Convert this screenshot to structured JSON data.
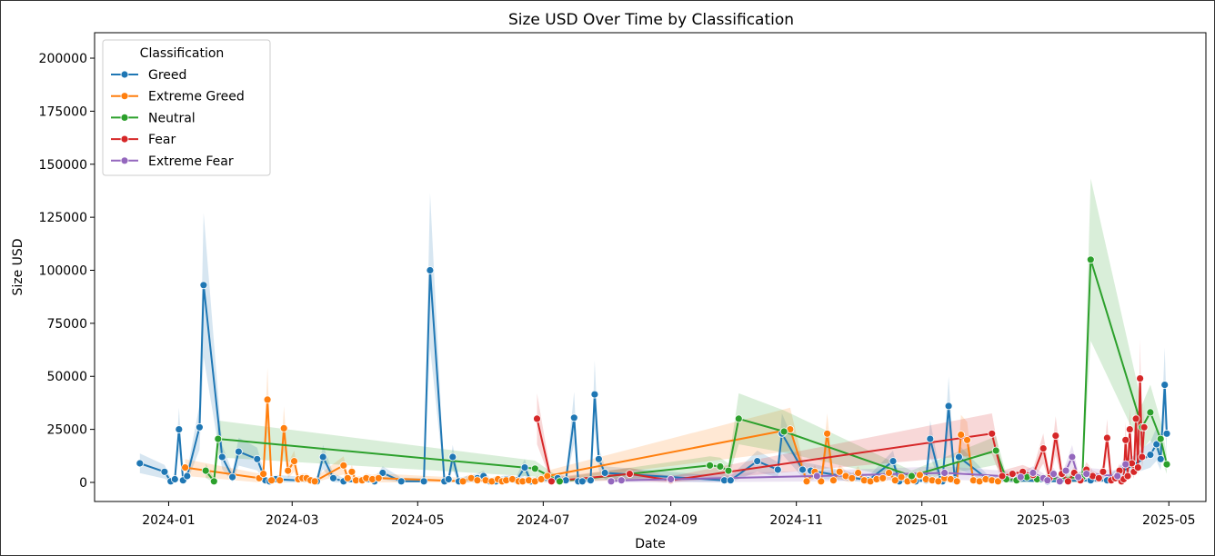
{
  "chart_data": {
    "type": "line",
    "title": "Size USD Over Time by Classification",
    "xlabel": "Date",
    "ylabel": "Size USD",
    "ylim": [
      -9000,
      212000
    ],
    "yticks": [
      0,
      25000,
      50000,
      75000,
      100000,
      125000,
      150000,
      175000,
      200000
    ],
    "y_tick_labels": [
      "0",
      "25000",
      "50000",
      "75000",
      "100000",
      "125000",
      "150000",
      "175000",
      "200000"
    ],
    "xlim": [
      "2023-11-26",
      "2025-05-19"
    ],
    "xticks": [
      "2024-01-01",
      "2024-03-01",
      "2024-05-01",
      "2024-07-01",
      "2024-09-01",
      "2024-11-01",
      "2025-01-01",
      "2025-03-01",
      "2025-05-01"
    ],
    "x_tick_labels": [
      "2024-01",
      "2024-03",
      "2024-05",
      "2024-07",
      "2024-09",
      "2024-11",
      "2025-01",
      "2025-03",
      "2025-05"
    ],
    "grid": false,
    "legend": {
      "title": "Classification",
      "placement": "top-left"
    },
    "series": [
      {
        "name": "Greed",
        "color": "#1f77b4",
        "x": [
          "2023-12-18",
          "2023-12-30",
          "2024-01-02",
          "2024-01-04",
          "2024-01-06",
          "2024-01-08",
          "2024-01-10",
          "2024-01-16",
          "2024-01-18",
          "2024-01-27",
          "2024-02-01",
          "2024-02-04",
          "2024-02-13",
          "2024-02-17",
          "2024-02-19",
          "2024-02-22",
          "2024-03-13",
          "2024-03-16",
          "2024-03-21",
          "2024-03-26",
          "2024-04-10",
          "2024-04-14",
          "2024-04-23",
          "2024-05-04",
          "2024-05-07",
          "2024-05-14",
          "2024-05-16",
          "2024-05-18",
          "2024-05-21",
          "2024-05-30",
          "2024-06-02",
          "2024-06-05",
          "2024-06-08",
          "2024-06-13",
          "2024-06-18",
          "2024-06-22",
          "2024-06-25",
          "2024-07-08",
          "2024-07-12",
          "2024-07-16",
          "2024-07-18",
          "2024-07-20",
          "2024-07-24",
          "2024-07-26",
          "2024-07-28",
          "2024-07-31",
          "2024-09-27",
          "2024-09-30",
          "2024-10-13",
          "2024-10-23",
          "2024-10-25",
          "2024-11-04",
          "2024-11-08",
          "2024-12-06",
          "2024-12-18",
          "2024-12-21",
          "2024-12-26",
          "2024-12-29",
          "2025-01-03",
          "2025-01-05",
          "2025-01-10",
          "2025-01-11",
          "2025-01-14",
          "2025-01-17",
          "2025-01-19",
          "2025-02-02",
          "2025-03-03",
          "2025-03-24",
          "2025-04-01",
          "2025-04-22",
          "2025-04-25",
          "2025-04-27",
          "2025-04-29",
          "2025-04-30"
        ],
        "values": [
          9000,
          5000,
          500,
          1500,
          25000,
          1000,
          3000,
          26000,
          93000,
          12000,
          2500,
          14500,
          11000,
          1000,
          500,
          1500,
          500,
          12000,
          2000,
          500,
          500,
          4500,
          500,
          500,
          100000,
          500,
          1500,
          12000,
          500,
          2000,
          3000,
          500,
          500,
          1500,
          1000,
          7000,
          500,
          2000,
          1000,
          30500,
          500,
          500,
          1000,
          41500,
          11000,
          4500,
          1000,
          1000,
          10000,
          6000,
          23000,
          6000,
          5500,
          1000,
          10000,
          500,
          1000,
          500,
          1000,
          20500,
          1500,
          500,
          36000,
          1000,
          12000,
          1500,
          500,
          1000,
          1000,
          13000,
          18000,
          11000,
          46000,
          23000
        ]
      },
      {
        "name": "Extreme Greed",
        "color": "#ff7f0e",
        "x": [
          "2024-01-09",
          "2024-02-14",
          "2024-02-16",
          "2024-02-18",
          "2024-02-20",
          "2024-02-24",
          "2024-02-26",
          "2024-02-28",
          "2024-03-02",
          "2024-03-04",
          "2024-03-06",
          "2024-03-08",
          "2024-03-10",
          "2024-03-12",
          "2024-03-26",
          "2024-03-28",
          "2024-03-30",
          "2024-04-01",
          "2024-04-04",
          "2024-04-06",
          "2024-04-09",
          "2024-04-12",
          "2024-05-23",
          "2024-05-27",
          "2024-05-30",
          "2024-06-03",
          "2024-06-06",
          "2024-06-09",
          "2024-06-11",
          "2024-06-13",
          "2024-06-16",
          "2024-06-19",
          "2024-06-21",
          "2024-06-24",
          "2024-06-27",
          "2024-06-30",
          "2024-07-03",
          "2024-10-29",
          "2024-11-06",
          "2024-11-10",
          "2024-11-13",
          "2024-11-16",
          "2024-11-19",
          "2024-11-22",
          "2024-11-25",
          "2024-11-28",
          "2024-12-01",
          "2024-12-04",
          "2024-12-07",
          "2024-12-10",
          "2024-12-13",
          "2024-12-16",
          "2024-12-19",
          "2024-12-22",
          "2024-12-25",
          "2024-12-28",
          "2024-12-31",
          "2025-01-03",
          "2025-01-06",
          "2025-01-09",
          "2025-01-12",
          "2025-01-15",
          "2025-01-18",
          "2025-01-20",
          "2025-01-23",
          "2025-01-26",
          "2025-01-29",
          "2025-02-01",
          "2025-02-04",
          "2025-02-07"
        ],
        "values": [
          7000,
          2000,
          4000,
          39000,
          1000,
          1000,
          25500,
          5500,
          10000,
          1500,
          2000,
          2000,
          1000,
          500,
          8000,
          2000,
          5000,
          1000,
          1000,
          2000,
          1500,
          2000,
          500,
          2000,
          1000,
          1000,
          500,
          1500,
          500,
          1000,
          1500,
          500,
          500,
          1000,
          500,
          1500,
          3000,
          25000,
          500,
          5000,
          500,
          23000,
          1000,
          5000,
          3000,
          2000,
          4500,
          1000,
          500,
          1500,
          2000,
          4500,
          1000,
          2500,
          500,
          1000,
          3500,
          1500,
          1000,
          500,
          2000,
          1500,
          500,
          22500,
          20000,
          1000,
          500,
          1500,
          1000,
          500
        ]
      },
      {
        "name": "Neutral",
        "color": "#2ca02c",
        "x": [
          "2024-01-19",
          "2024-01-23",
          "2024-01-25",
          "2024-06-27",
          "2024-07-09",
          "2024-09-20",
          "2024-09-25",
          "2024-09-29",
          "2024-10-04",
          "2024-10-26",
          "2024-12-27",
          "2025-02-06",
          "2025-02-11",
          "2025-02-16",
          "2025-02-21",
          "2025-02-26",
          "2025-03-20",
          "2025-03-24",
          "2025-04-18",
          "2025-04-22",
          "2025-04-27",
          "2025-04-30"
        ],
        "values": [
          5500,
          500,
          20500,
          6500,
          500,
          8000,
          7500,
          5500,
          30000,
          24000,
          3000,
          15000,
          1500,
          1000,
          2500,
          1500,
          2500,
          105000,
          26000,
          33000,
          20500,
          8500
        ]
      },
      {
        "name": "Fear",
        "color": "#d62728",
        "x": [
          "2024-06-28",
          "2024-07-05",
          "2024-08-12",
          "2024-09-01",
          "2025-02-04",
          "2025-02-09",
          "2025-02-14",
          "2025-02-19",
          "2025-02-24",
          "2025-03-01",
          "2025-03-04",
          "2025-03-07",
          "2025-03-10",
          "2025-03-13",
          "2025-03-16",
          "2025-03-19",
          "2025-03-22",
          "2025-03-25",
          "2025-03-28",
          "2025-03-30",
          "2025-04-01",
          "2025-04-03",
          "2025-04-05",
          "2025-04-07",
          "2025-04-08",
          "2025-04-09",
          "2025-04-10",
          "2025-04-11",
          "2025-04-12",
          "2025-04-13",
          "2025-04-14",
          "2025-04-15",
          "2025-04-16",
          "2025-04-17",
          "2025-04-18",
          "2025-04-19"
        ],
        "values": [
          30000,
          500,
          4000,
          1000,
          23000,
          3000,
          4000,
          5000,
          3500,
          16000,
          2000,
          22000,
          4000,
          500,
          4500,
          1000,
          6000,
          3000,
          2000,
          5000,
          21000,
          1000,
          2000,
          5500,
          500,
          1500,
          20000,
          3000,
          25000,
          9000,
          5000,
          30000,
          7000,
          49000,
          12000,
          26000
        ]
      },
      {
        "name": "Extreme Fear",
        "color": "#9467bd",
        "x": [
          "2024-08-03",
          "2024-08-08",
          "2024-09-01",
          "2024-11-11",
          "2025-01-12",
          "2025-02-18",
          "2025-02-24",
          "2025-03-01",
          "2025-03-03",
          "2025-03-06",
          "2025-03-09",
          "2025-03-12",
          "2025-03-15",
          "2025-03-18",
          "2025-03-22",
          "2025-04-06",
          "2025-04-10"
        ],
        "values": [
          500,
          1000,
          1500,
          3000,
          4500,
          2500,
          4500,
          2000,
          1000,
          4000,
          500,
          5500,
          12000,
          2500,
          4000,
          3000,
          8500
        ]
      }
    ]
  }
}
